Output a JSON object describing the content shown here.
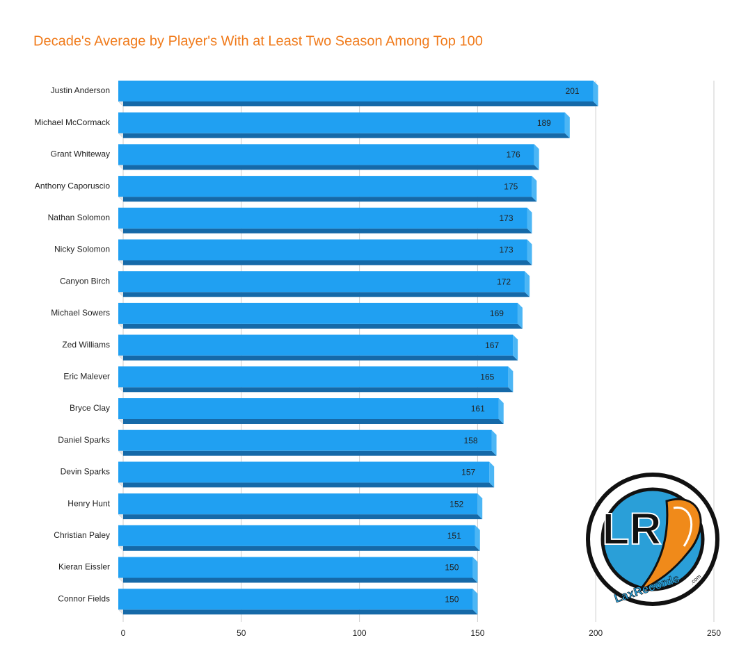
{
  "chart_data": {
    "type": "bar",
    "orientation": "horizontal",
    "title": "Decade's Average by Player's With at Least Two Season Among Top 100",
    "categories": [
      "Justin Anderson",
      "Michael McCormack",
      "Grant Whiteway",
      "Anthony Caporuscio",
      "Nathan Solomon",
      "Nicky Solomon",
      "Canyon Birch",
      "Michael Sowers",
      "Zed Williams",
      "Eric Malever",
      "Bryce Clay",
      "Daniel Sparks",
      "Devin Sparks",
      "Henry Hunt",
      "Christian Paley",
      "Kieran Eissler",
      "Connor Fields"
    ],
    "values": [
      201,
      189,
      176,
      175,
      173,
      173,
      172,
      169,
      167,
      165,
      161,
      158,
      157,
      152,
      151,
      150,
      150
    ],
    "color": "#20a0f2",
    "xlim": [
      0,
      250
    ],
    "xticks": [
      0,
      50,
      100,
      150,
      200,
      250
    ],
    "grid": true,
    "logo": {
      "monogram": "LR",
      "name": "LaxRecords",
      "suffix": ".com"
    }
  }
}
